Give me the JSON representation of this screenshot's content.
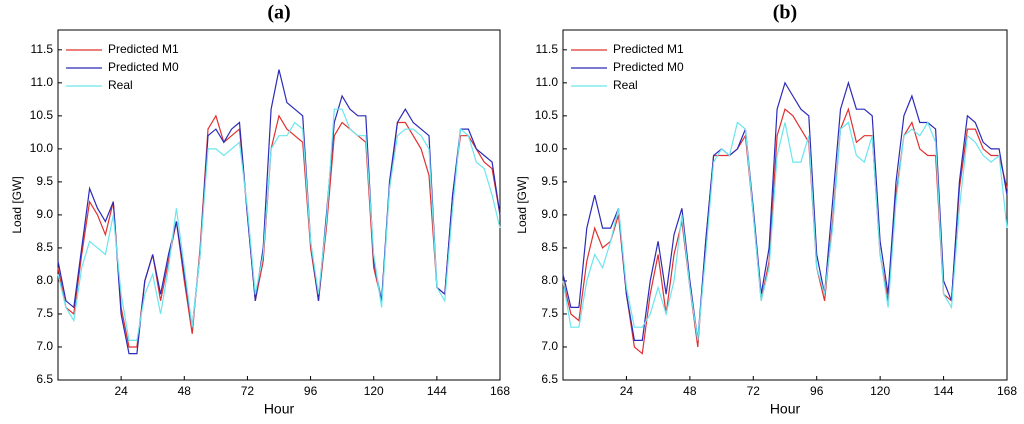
{
  "chart_data": [
    {
      "type": "line",
      "title": "(a)",
      "x_label": "Hour",
      "y_label": "Load [GW]",
      "x": [
        0,
        3,
        6,
        9,
        12,
        15,
        18,
        21,
        24,
        27,
        30,
        33,
        36,
        39,
        42,
        45,
        48,
        51,
        54,
        57,
        60,
        63,
        66,
        69,
        72,
        75,
        78,
        81,
        84,
        87,
        90,
        93,
        96,
        99,
        102,
        105,
        108,
        111,
        114,
        117,
        120,
        123,
        126,
        129,
        132,
        135,
        138,
        141,
        144,
        147,
        150,
        153,
        156,
        159,
        162,
        165,
        168
      ],
      "xlim": [
        0,
        168
      ],
      "xticks": [
        24,
        48,
        72,
        96,
        120,
        144,
        168
      ],
      "ylim": [
        6.5,
        11.8
      ],
      "yticks": [
        6.5,
        {
          "value": 7,
          "label": "7.0"
        },
        7.5,
        {
          "value": 8,
          "label": "8.0"
        },
        8.5,
        {
          "value": 9,
          "label": "9.0"
        },
        9.5,
        {
          "value": 10,
          "label": "10.0"
        },
        10.5,
        {
          "value": 11,
          "label": "11.0"
        },
        11.5
      ],
      "legend": "top-left",
      "series": [
        {
          "name": "Predicted M1",
          "color": "#e0302f",
          "values": [
            8.2,
            7.6,
            7.5,
            8.4,
            9.2,
            9.0,
            8.7,
            9.2,
            7.6,
            7.0,
            7.0,
            8.0,
            8.4,
            7.7,
            8.3,
            8.9,
            8.0,
            7.2,
            8.5,
            10.3,
            10.5,
            10.1,
            10.2,
            10.3,
            9.0,
            7.7,
            8.3,
            10.0,
            10.5,
            10.3,
            10.2,
            10.1,
            8.5,
            7.7,
            8.8,
            10.2,
            10.4,
            10.3,
            10.2,
            10.1,
            8.2,
            7.7,
            9.4,
            10.4,
            10.4,
            10.2,
            10.0,
            9.6,
            7.9,
            7.8,
            9.3,
            10.2,
            10.2,
            10.0,
            9.8,
            9.7,
            9.0
          ]
        },
        {
          "name": "Predicted M0",
          "color": "#2b2bb8",
          "values": [
            8.3,
            7.7,
            7.6,
            8.5,
            9.4,
            9.1,
            8.9,
            9.2,
            7.5,
            6.9,
            6.9,
            8.0,
            8.4,
            7.8,
            8.4,
            8.9,
            8.1,
            7.3,
            8.4,
            10.2,
            10.3,
            10.1,
            10.3,
            10.4,
            9.0,
            7.7,
            8.5,
            10.6,
            11.2,
            10.7,
            10.6,
            10.5,
            8.6,
            7.7,
            9.0,
            10.4,
            10.8,
            10.6,
            10.5,
            10.5,
            8.3,
            7.7,
            9.5,
            10.4,
            10.6,
            10.4,
            10.3,
            10.2,
            7.9,
            7.8,
            9.3,
            10.3,
            10.3,
            10.0,
            9.9,
            9.8,
            9.0
          ]
        },
        {
          "name": "Real",
          "color": "#6ae6ee",
          "values": [
            8.1,
            7.6,
            7.4,
            8.2,
            8.6,
            8.5,
            8.4,
            9.0,
            7.8,
            7.1,
            7.1,
            7.8,
            8.1,
            7.5,
            8.2,
            9.1,
            8.2,
            7.3,
            8.4,
            10.0,
            10.0,
            9.9,
            10.0,
            10.1,
            9.1,
            7.8,
            8.4,
            10.0,
            10.2,
            10.2,
            10.4,
            10.3,
            8.6,
            7.8,
            8.9,
            10.6,
            10.6,
            10.3,
            10.2,
            10.2,
            8.4,
            7.6,
            9.4,
            10.2,
            10.3,
            10.3,
            10.2,
            10.0,
            7.9,
            7.7,
            9.1,
            10.3,
            10.2,
            9.8,
            9.7,
            9.3,
            8.8
          ]
        }
      ]
    },
    {
      "type": "line",
      "title": "(b)",
      "x_label": "Hour",
      "y_label": "Load [GW]",
      "x": [
        0,
        3,
        6,
        9,
        12,
        15,
        18,
        21,
        24,
        27,
        30,
        33,
        36,
        39,
        42,
        45,
        48,
        51,
        54,
        57,
        60,
        63,
        66,
        69,
        72,
        75,
        78,
        81,
        84,
        87,
        90,
        93,
        96,
        99,
        102,
        105,
        108,
        111,
        114,
        117,
        120,
        123,
        126,
        129,
        132,
        135,
        138,
        141,
        144,
        147,
        150,
        153,
        156,
        159,
        162,
        165,
        168
      ],
      "xlim": [
        0,
        168
      ],
      "xticks": [
        24,
        48,
        72,
        96,
        120,
        144,
        168
      ],
      "ylim": [
        6.5,
        11.8
      ],
      "yticks": [
        6.5,
        {
          "value": 7,
          "label": "7.0"
        },
        7.5,
        {
          "value": 8,
          "label": "8.0"
        },
        8.5,
        {
          "value": 9,
          "label": "9.0"
        },
        9.5,
        {
          "value": 10,
          "label": "10.0"
        },
        10.5,
        {
          "value": 11,
          "label": "11.0"
        },
        11.5
      ],
      "legend": "top-left",
      "series": [
        {
          "name": "Predicted M1",
          "color": "#e0302f",
          "values": [
            8.0,
            7.5,
            7.4,
            8.3,
            8.8,
            8.5,
            8.6,
            9.0,
            7.8,
            7.0,
            6.9,
            7.8,
            8.4,
            7.5,
            8.4,
            8.9,
            7.9,
            7.0,
            8.6,
            9.9,
            9.9,
            9.9,
            10.0,
            10.2,
            9.0,
            7.7,
            8.3,
            10.2,
            10.6,
            10.5,
            10.3,
            10.1,
            8.2,
            7.7,
            8.9,
            10.3,
            10.6,
            10.1,
            10.2,
            10.2,
            8.4,
            7.7,
            9.3,
            10.2,
            10.4,
            10.0,
            9.9,
            9.9,
            7.8,
            7.7,
            9.4,
            10.3,
            10.3,
            10.0,
            9.9,
            9.9,
            9.4
          ]
        },
        {
          "name": "Predicted M0",
          "color": "#2b2bb8",
          "values": [
            8.1,
            7.6,
            7.6,
            8.8,
            9.3,
            8.8,
            8.8,
            9.1,
            7.8,
            7.1,
            7.1,
            8.0,
            8.6,
            7.8,
            8.7,
            9.1,
            8.0,
            7.1,
            8.6,
            9.9,
            10.0,
            9.9,
            10.0,
            10.3,
            9.1,
            7.8,
            8.5,
            10.6,
            11.0,
            10.8,
            10.6,
            10.5,
            8.4,
            7.8,
            9.2,
            10.6,
            11.0,
            10.6,
            10.6,
            10.5,
            8.6,
            7.8,
            9.5,
            10.5,
            10.8,
            10.4,
            10.4,
            10.3,
            8.0,
            7.7,
            9.5,
            10.5,
            10.4,
            10.1,
            10.0,
            10.0,
            9.3
          ]
        },
        {
          "name": "Real",
          "color": "#6ae6ee",
          "values": [
            8.0,
            7.3,
            7.3,
            8.0,
            8.4,
            8.2,
            8.6,
            9.1,
            7.9,
            7.3,
            7.3,
            7.5,
            7.9,
            7.5,
            8.0,
            9.0,
            7.9,
            7.1,
            8.4,
            9.8,
            10.0,
            9.9,
            10.4,
            10.3,
            9.0,
            7.7,
            8.2,
            9.9,
            10.4,
            9.8,
            9.8,
            10.2,
            8.2,
            7.8,
            8.8,
            10.3,
            10.4,
            9.9,
            9.8,
            10.2,
            8.4,
            7.6,
            9.2,
            10.2,
            10.3,
            10.2,
            10.4,
            10.1,
            7.8,
            7.6,
            9.1,
            10.2,
            10.1,
            9.9,
            9.8,
            9.9,
            8.8
          ]
        }
      ]
    }
  ]
}
